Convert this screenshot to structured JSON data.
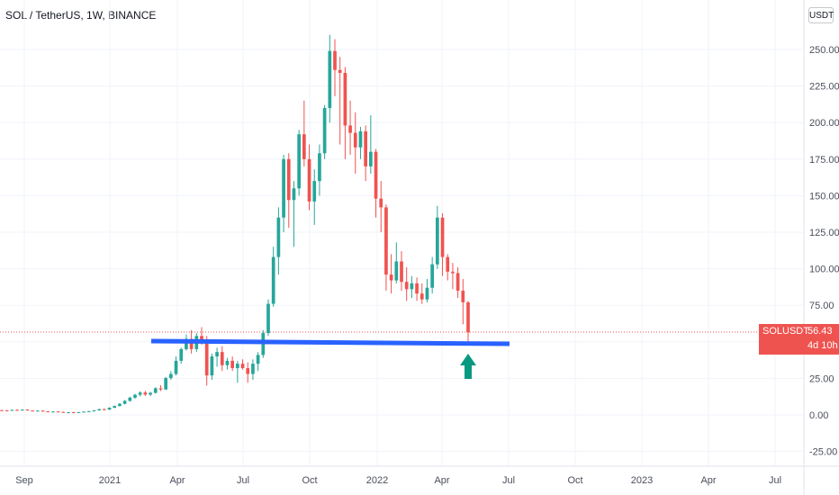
{
  "header": {
    "title": "SOL / TetherUS, 1W, BINANCE",
    "currency": "USDT"
  },
  "price_tag": {
    "symbol": "SOLUSDT",
    "price": "56.43",
    "countdown": "4d 10h"
  },
  "colors": {
    "up": "#26a69a",
    "down": "#ef5350",
    "support_line": "#2962ff",
    "arrow": "#089981"
  },
  "chart_data": {
    "type": "candlestick",
    "title": "SOL / TetherUS, 1W, BINANCE",
    "xlabel": "",
    "ylabel": "",
    "x_ticks": [
      "Sep",
      "2021",
      "Apr",
      "Jul",
      "Oct",
      "2022",
      "Apr",
      "Jul",
      "Oct",
      "2023",
      "Apr",
      "Jul"
    ],
    "y_ticks": [
      "250.00",
      "225.00",
      "200.00",
      "175.00",
      "150.00",
      "125.00",
      "100.00",
      "75.00",
      "50.00",
      "25.00",
      "0.00",
      "-25.00"
    ],
    "ylim": [
      -30,
      265
    ],
    "grid": true,
    "last_price": 56.43,
    "support_level": 50,
    "arrow_marker": "up arrow below last candle",
    "series": [
      {
        "values": [
          [
            3.2,
            3.4,
            2.9,
            3.1
          ],
          [
            3.1,
            3.3,
            2.7,
            2.9
          ],
          [
            2.9,
            3.6,
            2.8,
            3.4
          ],
          [
            3.4,
            3.9,
            3.0,
            3.2
          ],
          [
            3.2,
            3.8,
            2.9,
            3.6
          ],
          [
            3.6,
            3.9,
            2.9,
            3.0
          ],
          [
            3.0,
            3.2,
            2.5,
            2.7
          ],
          [
            2.7,
            3.1,
            2.4,
            2.9
          ],
          [
            2.9,
            3.2,
            2.2,
            2.4
          ],
          [
            2.4,
            2.7,
            1.9,
            2.1
          ],
          [
            2.1,
            2.5,
            1.8,
            2.3
          ],
          [
            2.3,
            2.6,
            1.9,
            2.0
          ],
          [
            2.0,
            2.3,
            1.5,
            1.7
          ],
          [
            1.7,
            2.0,
            1.4,
            1.8
          ],
          [
            1.8,
            2.1,
            1.5,
            1.6
          ],
          [
            1.6,
            2.0,
            1.4,
            1.9
          ],
          [
            1.9,
            2.4,
            1.8,
            2.2
          ],
          [
            2.2,
            2.7,
            2.0,
            2.5
          ],
          [
            2.5,
            3.3,
            2.3,
            3.1
          ],
          [
            3.1,
            4.2,
            2.9,
            3.9
          ],
          [
            3.9,
            4.5,
            3.3,
            3.6
          ],
          [
            3.6,
            5.2,
            3.4,
            4.9
          ],
          [
            4.9,
            6.4,
            4.6,
            6.1
          ],
          [
            6.1,
            8.0,
            5.8,
            7.6
          ],
          [
            7.6,
            10.2,
            7.1,
            9.6
          ],
          [
            9.6,
            12.5,
            9.0,
            11.8
          ],
          [
            11.8,
            14.4,
            10.9,
            13.8
          ],
          [
            13.8,
            16.2,
            12.6,
            15.3
          ],
          [
            15.3,
            16.4,
            13.0,
            13.9
          ],
          [
            13.9,
            15.8,
            12.8,
            15.1
          ],
          [
            15.1,
            19.0,
            14.6,
            18.2
          ],
          [
            18.2,
            20.4,
            16.3,
            17.4
          ],
          [
            17.4,
            26.0,
            17.0,
            25.2
          ],
          [
            25.2,
            30.0,
            24.0,
            28.0
          ],
          [
            28.0,
            40.0,
            27.0,
            37.0
          ],
          [
            37.0,
            46.0,
            35.0,
            45.0
          ],
          [
            45.0,
            55.0,
            44.0,
            52.0
          ],
          [
            52.0,
            58.0,
            42.0,
            45.0
          ],
          [
            45.0,
            56.0,
            43.0,
            54.0
          ],
          [
            54.0,
            60.0,
            48.0,
            51.0
          ],
          [
            51.0,
            54.0,
            20.0,
            27.0
          ],
          [
            27.0,
            42.0,
            24.0,
            40.0
          ],
          [
            40.0,
            46.0,
            33.0,
            43.0
          ],
          [
            43.0,
            47.0,
            30.0,
            34.0
          ],
          [
            34.0,
            39.0,
            31.0,
            37.0
          ],
          [
            37.0,
            40.0,
            30.0,
            32.0
          ],
          [
            32.0,
            37.0,
            22.0,
            35.0
          ],
          [
            35.0,
            38.0,
            31.0,
            32.0
          ],
          [
            32.0,
            36.0,
            22.0,
            28.0
          ],
          [
            28.0,
            38.0,
            24.0,
            35.0
          ],
          [
            35.0,
            43.0,
            30.0,
            41.0
          ],
          [
            41.0,
            58.0,
            39.0,
            56.0
          ],
          [
            56.0,
            79.0,
            54.0,
            76.0
          ],
          [
            76.0,
            115.0,
            74.0,
            108.0
          ],
          [
            108.0,
            142.0,
            96.0,
            135.0
          ],
          [
            135.0,
            178.0,
            125.0,
            175.0
          ],
          [
            175.0,
            179.0,
            128.0,
            147.0
          ],
          [
            147.0,
            160.0,
            115.0,
            155.0
          ],
          [
            155.0,
            195.0,
            150.0,
            192.0
          ],
          [
            192.0,
            215.0,
            170.0,
            175.0
          ],
          [
            175.0,
            185.0,
            140.0,
            146.0
          ],
          [
            146.0,
            168.0,
            130.0,
            160.0
          ],
          [
            160.0,
            185.0,
            150.0,
            179.0
          ],
          [
            179.0,
            212.0,
            175.0,
            210.0
          ],
          [
            210.0,
            260.0,
            200.0,
            249.0
          ],
          [
            249.0,
            257.0,
            218.0,
            236.0
          ],
          [
            236.0,
            245.0,
            185.0,
            234.0
          ],
          [
            234.0,
            238.0,
            175.0,
            198.0
          ],
          [
            198.0,
            215.0,
            178.0,
            193.0
          ],
          [
            193.0,
            207.0,
            165.0,
            183.0
          ],
          [
            183.0,
            197.0,
            175.0,
            194.0
          ],
          [
            194.0,
            198.0,
            160.0,
            170.0
          ],
          [
            170.0,
            205.0,
            165.0,
            180.0
          ],
          [
            180.0,
            182.0,
            135.0,
            148.0
          ],
          [
            148.0,
            160.0,
            125.0,
            142.0
          ],
          [
            142.0,
            144.0,
            85.0,
            96.0
          ],
          [
            96.0,
            110.0,
            83.0,
            92.0
          ],
          [
            92.0,
            118.0,
            90.0,
            105.0
          ],
          [
            105.0,
            112.0,
            85.0,
            91.0
          ],
          [
            91.0,
            101.0,
            78.0,
            86.0
          ],
          [
            86.0,
            95.0,
            80.0,
            90.0
          ],
          [
            90.0,
            94.0,
            78.0,
            83.0
          ],
          [
            83.0,
            90.0,
            76.0,
            79.0
          ],
          [
            79.0,
            93.0,
            77.0,
            87.0
          ],
          [
            87.0,
            108.0,
            83.0,
            103.0
          ],
          [
            103.0,
            143.0,
            100.0,
            135.0
          ],
          [
            135.0,
            138.0,
            95.0,
            108.0
          ],
          [
            108.0,
            110.0,
            92.0,
            98.0
          ],
          [
            98.0,
            104.0,
            86.0,
            97.0
          ],
          [
            97.0,
            101.0,
            80.0,
            85.0
          ],
          [
            85.0,
            93.0,
            62.0,
            77.0
          ],
          [
            77.0,
            78.0,
            50.0,
            56.43
          ]
        ]
      }
    ]
  }
}
